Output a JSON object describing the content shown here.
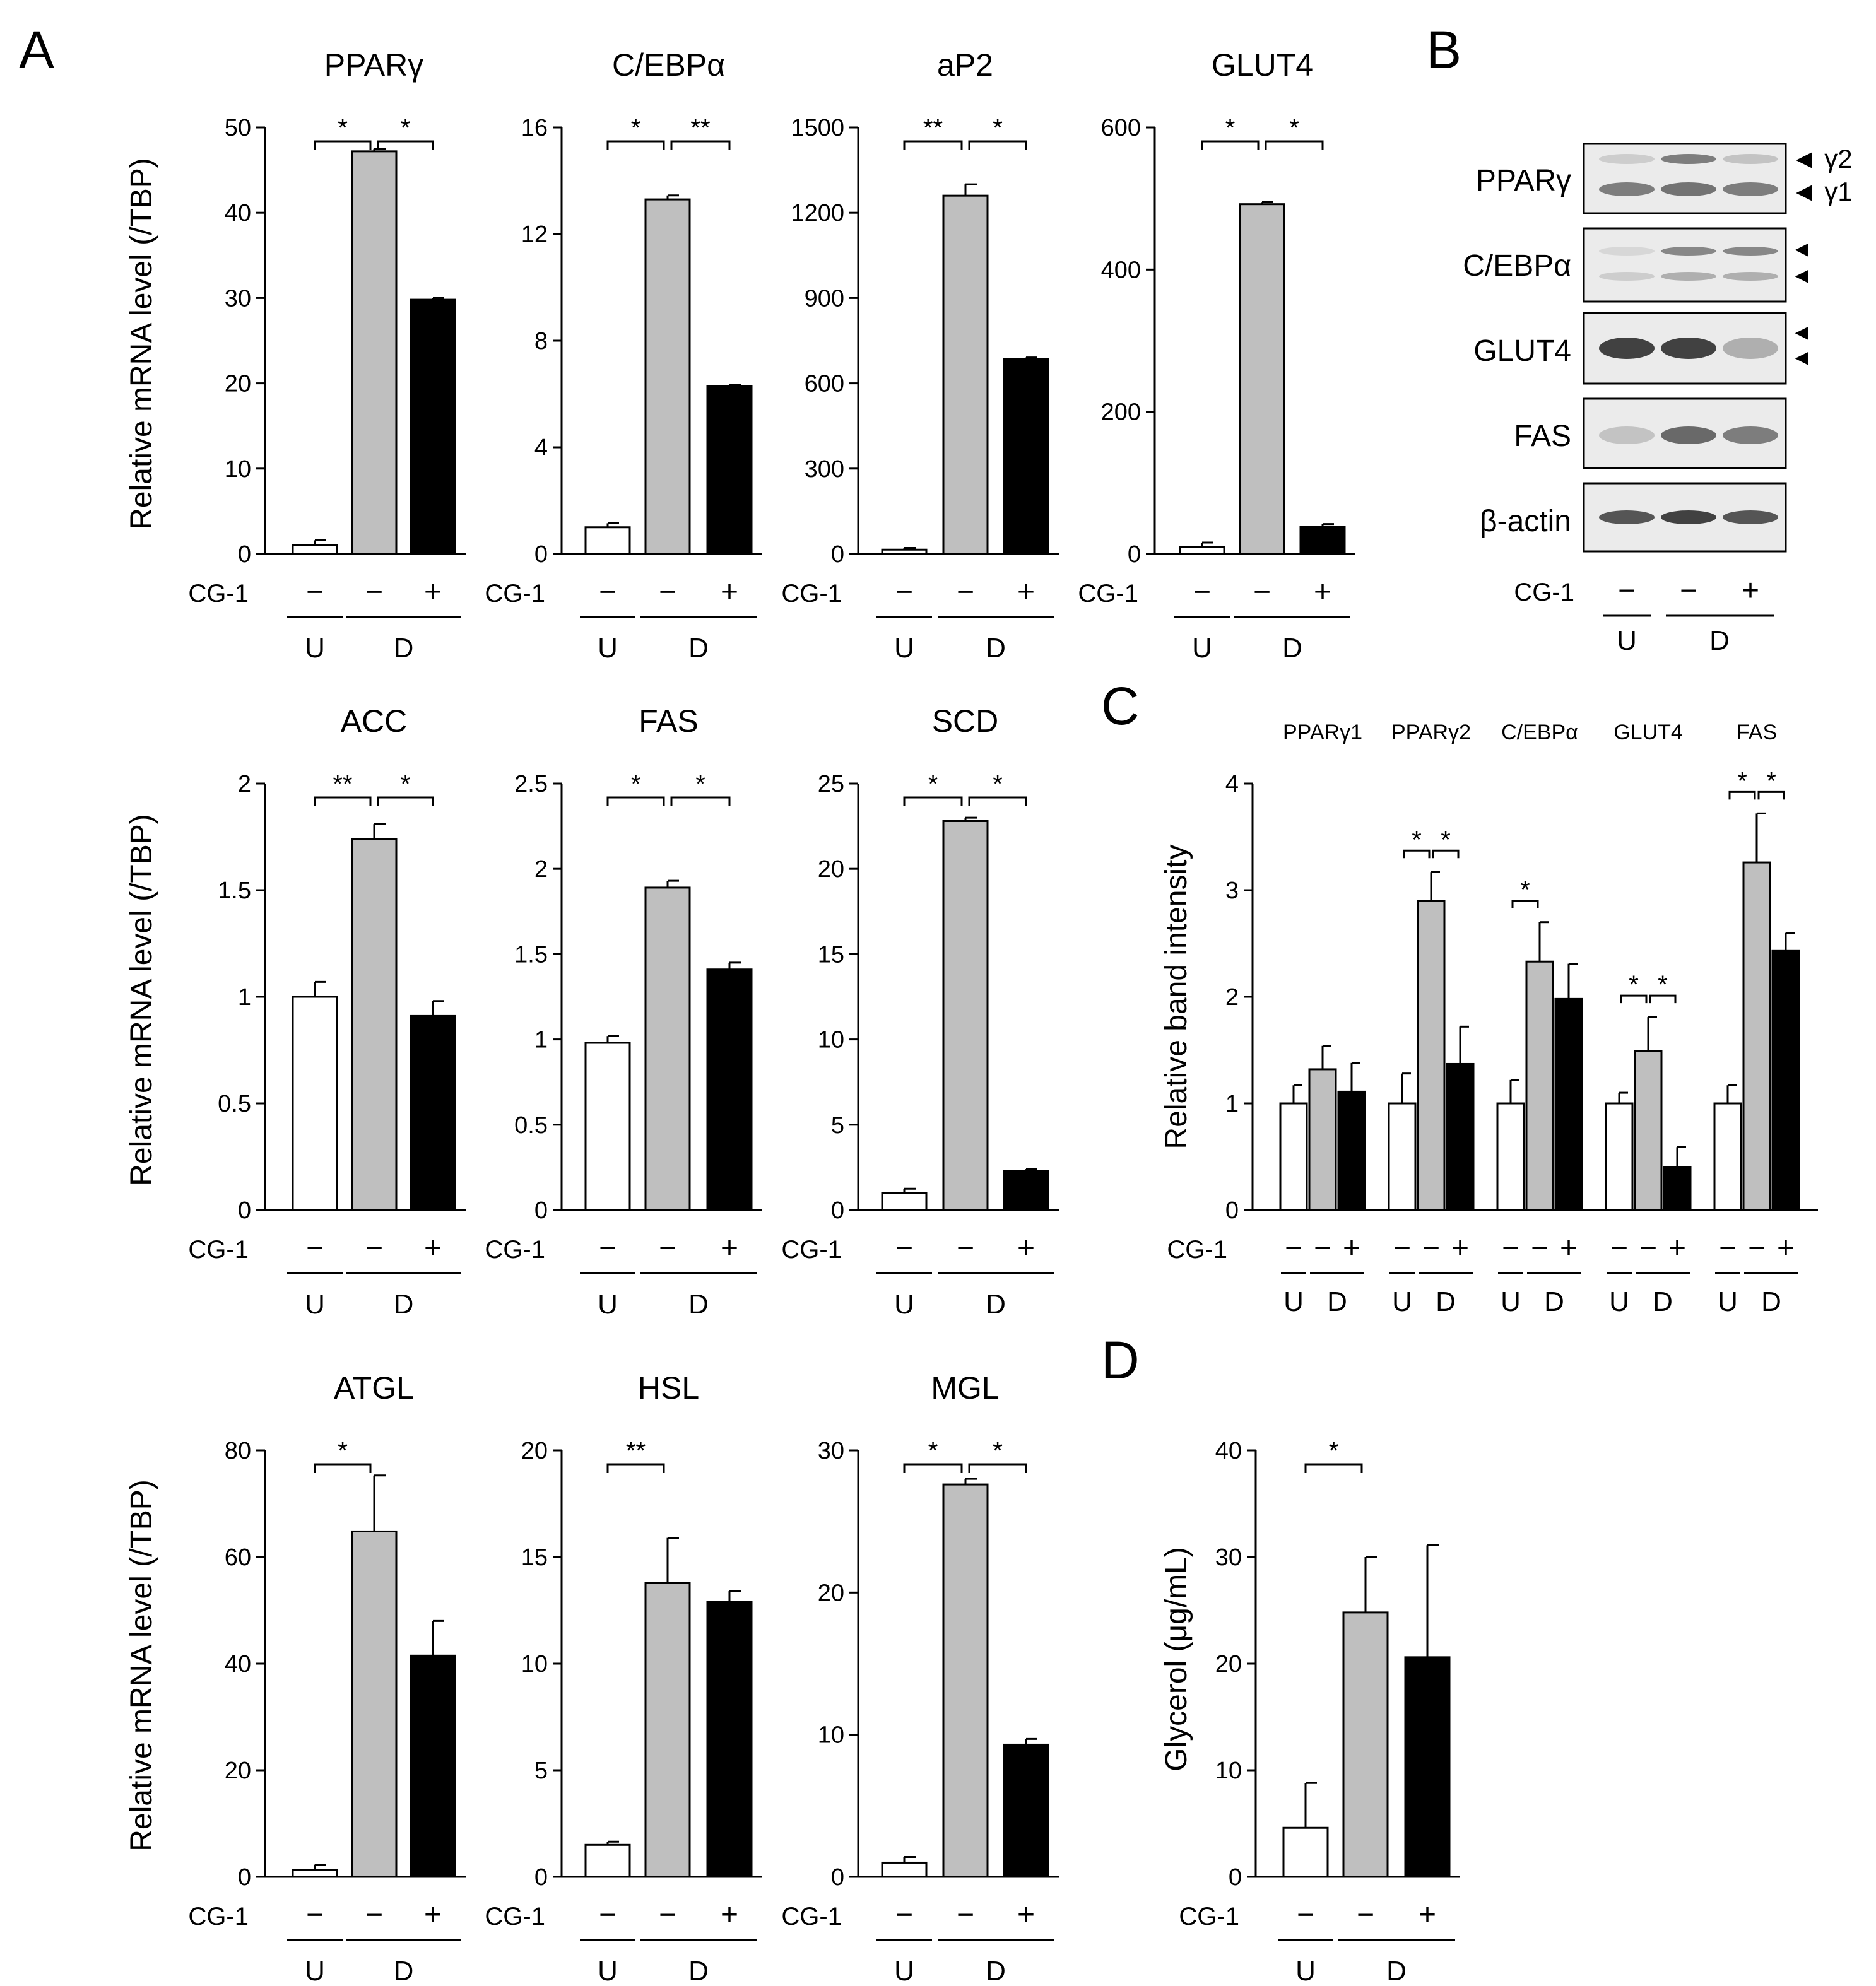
{
  "panel_letters": {
    "A": "A",
    "B": "B",
    "C": "C",
    "D": "D"
  },
  "common": {
    "ylabel_mrna_1": "Relative mRNA level (/TBP)",
    "ylabel_mrna_2": "Relative mRNA level (/TBP)",
    "ylabel_mrna_3": "Relative mRNA level (/TBP)",
    "treatment_label": "CG-1",
    "sign_minus": "−",
    "sign_plus": "+",
    "group_u": "U",
    "group_d": "D",
    "bar_colors": [
      "#ffffff",
      "#bfbfbf",
      "#000000"
    ]
  },
  "chart_data": [
    {
      "id": "pparg",
      "type": "bar",
      "panel": "A",
      "title": "PPARγ",
      "ylim": [
        0,
        50
      ],
      "yticks": [
        "0",
        "10",
        "20",
        "30",
        "40",
        "50"
      ],
      "values": [
        1.0,
        47.2,
        29.8
      ],
      "errors": [
        0.6,
        0.3,
        0.2
      ],
      "signif": [
        {
          "from": 0,
          "to": 1,
          "label": "*"
        },
        {
          "from": 1,
          "to": 2,
          "label": "*"
        }
      ]
    },
    {
      "id": "cebpa",
      "type": "bar",
      "panel": "A",
      "title": "C/EBPα",
      "ylim": [
        0,
        16
      ],
      "yticks": [
        "0",
        "4",
        "8",
        "12",
        "16"
      ],
      "values": [
        1.0,
        13.3,
        6.3
      ],
      "errors": [
        0.15,
        0.15,
        0.03
      ],
      "signif": [
        {
          "from": 0,
          "to": 1,
          "label": "*"
        },
        {
          "from": 1,
          "to": 2,
          "label": "**"
        }
      ]
    },
    {
      "id": "ap2",
      "type": "bar",
      "panel": "A",
      "title": "aP2",
      "ylim": [
        0,
        1500
      ],
      "yticks": [
        "0",
        "300",
        "600",
        "900",
        "1200",
        "1500"
      ],
      "values": [
        15,
        1260,
        685
      ],
      "errors": [
        6,
        40,
        6
      ],
      "signif": [
        {
          "from": 0,
          "to": 1,
          "label": "**"
        },
        {
          "from": 1,
          "to": 2,
          "label": "*"
        }
      ]
    },
    {
      "id": "glut4",
      "type": "bar",
      "panel": "A",
      "title": "GLUT4",
      "ylim": [
        0,
        600
      ],
      "yticks": [
        "0",
        "200",
        "400",
        "600"
      ],
      "values": [
        10,
        492,
        38
      ],
      "errors": [
        6,
        3,
        4
      ],
      "signif": [
        {
          "from": 0,
          "to": 1,
          "label": "*"
        },
        {
          "from": 1,
          "to": 2,
          "label": "*"
        }
      ]
    },
    {
      "id": "acc",
      "type": "bar",
      "panel": "A",
      "title": "ACC",
      "ylim": [
        0,
        2
      ],
      "yticks": [
        "0",
        "0.5",
        "1",
        "1.5",
        "2"
      ],
      "values": [
        1.0,
        1.74,
        0.91
      ],
      "errors": [
        0.07,
        0.07,
        0.07
      ],
      "signif": [
        {
          "from": 0,
          "to": 1,
          "label": "**"
        },
        {
          "from": 1,
          "to": 2,
          "label": "*"
        }
      ]
    },
    {
      "id": "fas",
      "type": "bar",
      "panel": "A",
      "title": "FAS",
      "ylim": [
        0,
        2.5
      ],
      "yticks": [
        "0",
        "0.5",
        "1",
        "1.5",
        "2",
        "2.5"
      ],
      "values": [
        0.98,
        1.89,
        1.41
      ],
      "errors": [
        0.04,
        0.04,
        0.04
      ],
      "signif": [
        {
          "from": 0,
          "to": 1,
          "label": "*"
        },
        {
          "from": 1,
          "to": 2,
          "label": "*"
        }
      ]
    },
    {
      "id": "scd",
      "type": "bar",
      "panel": "A",
      "title": "SCD",
      "ylim": [
        0,
        25
      ],
      "yticks": [
        "0",
        "5",
        "10",
        "15",
        "20",
        "25"
      ],
      "values": [
        1.0,
        22.8,
        2.3
      ],
      "errors": [
        0.25,
        0.2,
        0.1
      ],
      "signif": [
        {
          "from": 0,
          "to": 1,
          "label": "*"
        },
        {
          "from": 1,
          "to": 2,
          "label": "*"
        }
      ]
    },
    {
      "id": "atgl",
      "type": "bar",
      "panel": "A",
      "title": "ATGL",
      "ylim": [
        0,
        80
      ],
      "yticks": [
        "0",
        "20",
        "40",
        "60",
        "80"
      ],
      "values": [
        1.3,
        64.8,
        41.5
      ],
      "errors": [
        1.0,
        10.5,
        6.5
      ],
      "signif": [
        {
          "from": 0,
          "to": 1,
          "label": "*"
        }
      ]
    },
    {
      "id": "hsl",
      "type": "bar",
      "panel": "A",
      "title": "HSL",
      "ylim": [
        0,
        20
      ],
      "yticks": [
        "0",
        "5",
        "10",
        "15",
        "20"
      ],
      "values": [
        1.5,
        13.8,
        12.9
      ],
      "errors": [
        0.15,
        2.1,
        0.5
      ],
      "signif": [
        {
          "from": 0,
          "to": 1,
          "label": "**"
        }
      ]
    },
    {
      "id": "mgl",
      "type": "bar",
      "panel": "A",
      "title": "MGL",
      "ylim": [
        0,
        30
      ],
      "yticks": [
        "0",
        "10",
        "20",
        "30"
      ],
      "values": [
        1.0,
        27.6,
        9.3
      ],
      "errors": [
        0.4,
        0.4,
        0.4
      ],
      "signif": [
        {
          "from": 0,
          "to": 1,
          "label": "*"
        },
        {
          "from": 1,
          "to": 2,
          "label": "*"
        }
      ]
    },
    {
      "id": "band",
      "type": "bar",
      "panel": "C",
      "title": "",
      "ylabel": "Relative band intensity",
      "ylim": [
        0,
        4
      ],
      "yticks": [
        "0",
        "1",
        "2",
        "3",
        "4"
      ],
      "groups": [
        {
          "name": "PPARγ1",
          "values": [
            1.0,
            1.32,
            1.11
          ],
          "errors": [
            0.17,
            0.22,
            0.27
          ],
          "signif": []
        },
        {
          "name": "PPARγ2",
          "values": [
            1.0,
            2.9,
            1.37
          ],
          "errors": [
            0.28,
            0.27,
            0.35
          ],
          "signif": [
            {
              "from": 0,
              "to": 1,
              "label": "*"
            },
            {
              "from": 1,
              "to": 2,
              "label": "*"
            }
          ]
        },
        {
          "name": "C/EBPα",
          "values": [
            1.0,
            2.33,
            1.98
          ],
          "errors": [
            0.22,
            0.37,
            0.33
          ],
          "signif": [
            {
              "from": 0,
              "to": 1,
              "label": "*"
            }
          ]
        },
        {
          "name": "GLUT4",
          "values": [
            1.0,
            1.49,
            0.4
          ],
          "errors": [
            0.1,
            0.32,
            0.19
          ],
          "signif": [
            {
              "from": 0,
              "to": 1,
              "label": "*"
            },
            {
              "from": 1,
              "to": 2,
              "label": "*"
            }
          ]
        },
        {
          "name": "FAS",
          "values": [
            1.0,
            3.26,
            2.43
          ],
          "errors": [
            0.17,
            0.46,
            0.17
          ],
          "signif": [
            {
              "from": 0,
              "to": 1,
              "label": "*"
            },
            {
              "from": 1,
              "to": 2,
              "label": "*"
            }
          ]
        }
      ]
    },
    {
      "id": "glycerol",
      "type": "bar",
      "panel": "D",
      "title": "",
      "ylabel": "Glycerol (μg/mL)",
      "ylim": [
        0,
        40
      ],
      "yticks": [
        "0",
        "10",
        "20",
        "30",
        "40"
      ],
      "values": [
        4.6,
        24.8,
        20.6
      ],
      "errors": [
        4.2,
        5.2,
        10.5
      ],
      "signif": [
        {
          "from": 0,
          "to": 1,
          "label": "*"
        }
      ]
    }
  ],
  "blot": {
    "rows": [
      {
        "label": "PPARγ",
        "arrows": [
          "◄ γ2",
          "◄ γ1"
        ]
      },
      {
        "label": "C/EBPα",
        "arrows": [
          "◄",
          "◄"
        ]
      },
      {
        "label": "GLUT4",
        "arrows": [
          "◄",
          "◄"
        ]
      },
      {
        "label": "FAS",
        "arrows": []
      },
      {
        "label": "β-actin",
        "arrows": []
      }
    ]
  }
}
